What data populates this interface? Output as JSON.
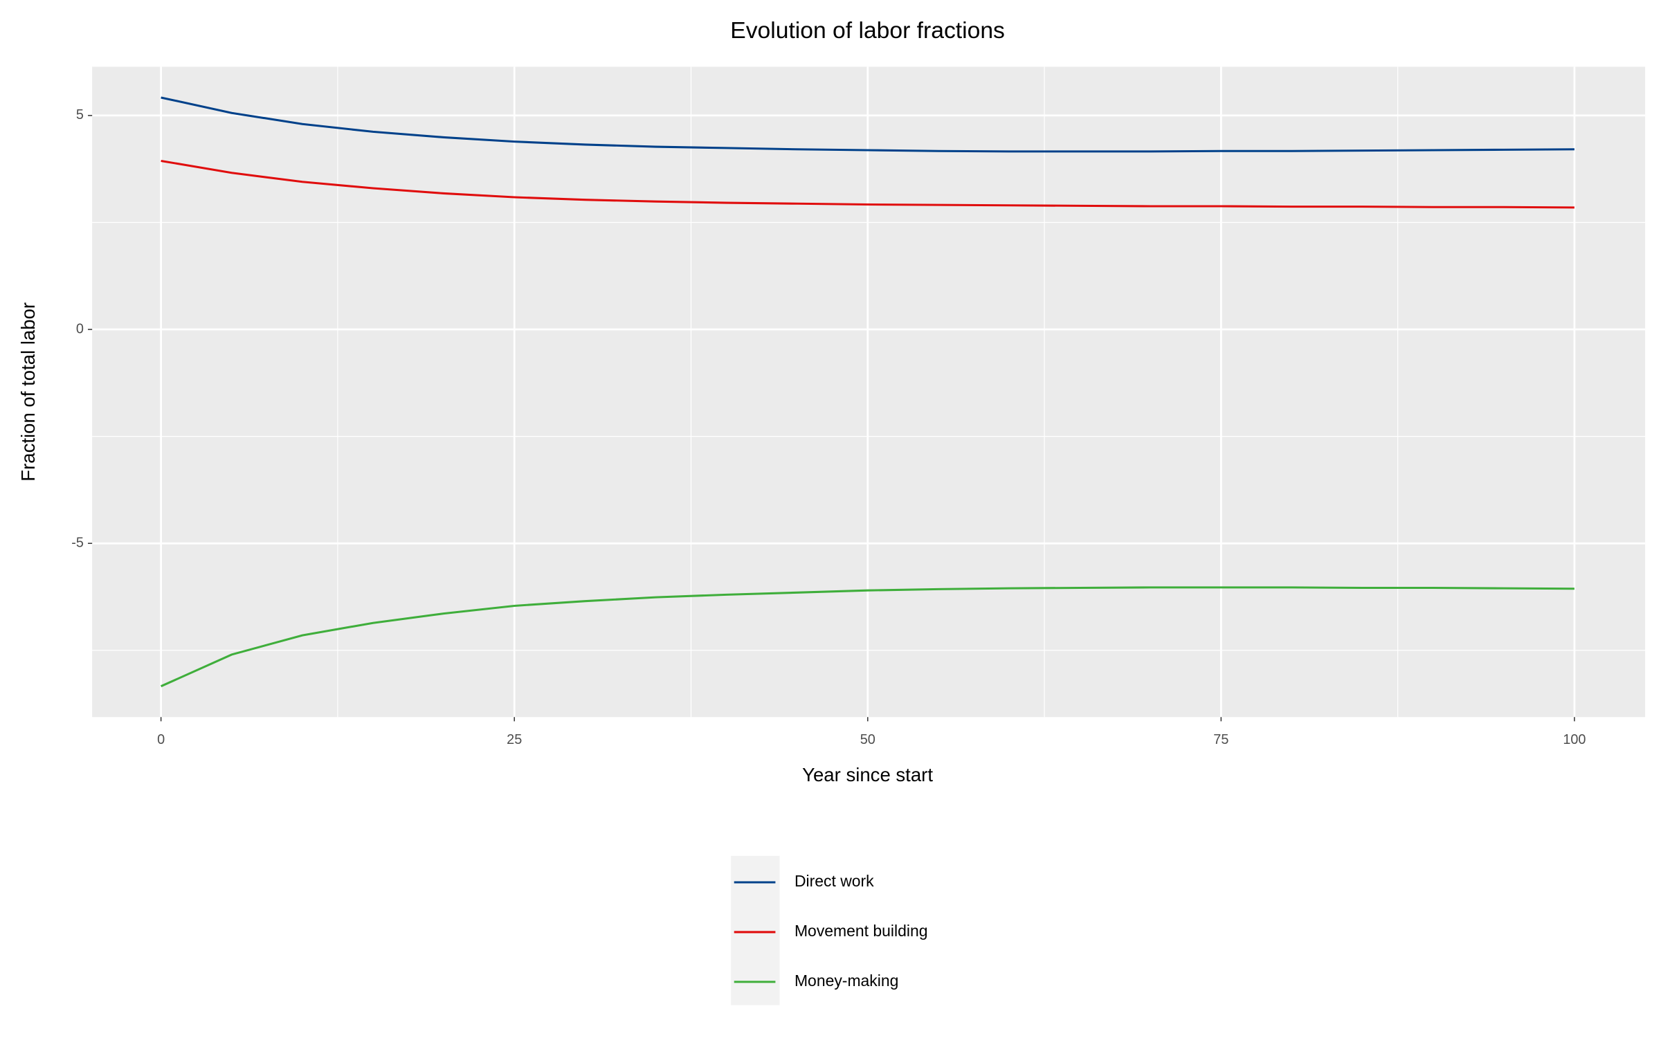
{
  "chart_data": {
    "type": "line",
    "title": "Evolution of labor fractions",
    "x_label": "Year since start",
    "y_label": "Fraction of total labor",
    "x": [
      0,
      5,
      10,
      15,
      20,
      25,
      30,
      35,
      40,
      45,
      50,
      55,
      60,
      65,
      70,
      75,
      80,
      85,
      90,
      95,
      100
    ],
    "series": [
      {
        "name": "Direct work",
        "color": "#00418a",
        "values": [
          5.42,
          5.06,
          4.8,
          4.62,
          4.49,
          4.39,
          4.32,
          4.27,
          4.24,
          4.21,
          4.19,
          4.17,
          4.16,
          4.16,
          4.16,
          4.17,
          4.17,
          4.18,
          4.19,
          4.2,
          4.21
        ]
      },
      {
        "name": "Movement building",
        "color": "#e00d0d",
        "values": [
          3.94,
          3.66,
          3.45,
          3.3,
          3.18,
          3.09,
          3.03,
          2.99,
          2.96,
          2.94,
          2.92,
          2.91,
          2.9,
          2.89,
          2.88,
          2.88,
          2.87,
          2.87,
          2.86,
          2.86,
          2.85
        ]
      },
      {
        "name": "Money-making",
        "color": "#3fae3b",
        "values": [
          -8.34,
          -7.6,
          -7.15,
          -6.86,
          -6.64,
          -6.46,
          -6.35,
          -6.26,
          -6.2,
          -6.15,
          -6.1,
          -6.07,
          -6.05,
          -6.04,
          -6.03,
          -6.03,
          -6.03,
          -6.04,
          -6.04,
          -6.05,
          -6.06
        ]
      }
    ],
    "xlim": [
      -4.87,
      105.0
    ],
    "xticks": [
      0,
      25,
      50,
      75,
      100
    ],
    "ylim": [
      -9.06,
      6.14
    ],
    "yticks": [
      -5,
      0,
      5
    ],
    "grid": true,
    "legend_position": "bottom"
  }
}
